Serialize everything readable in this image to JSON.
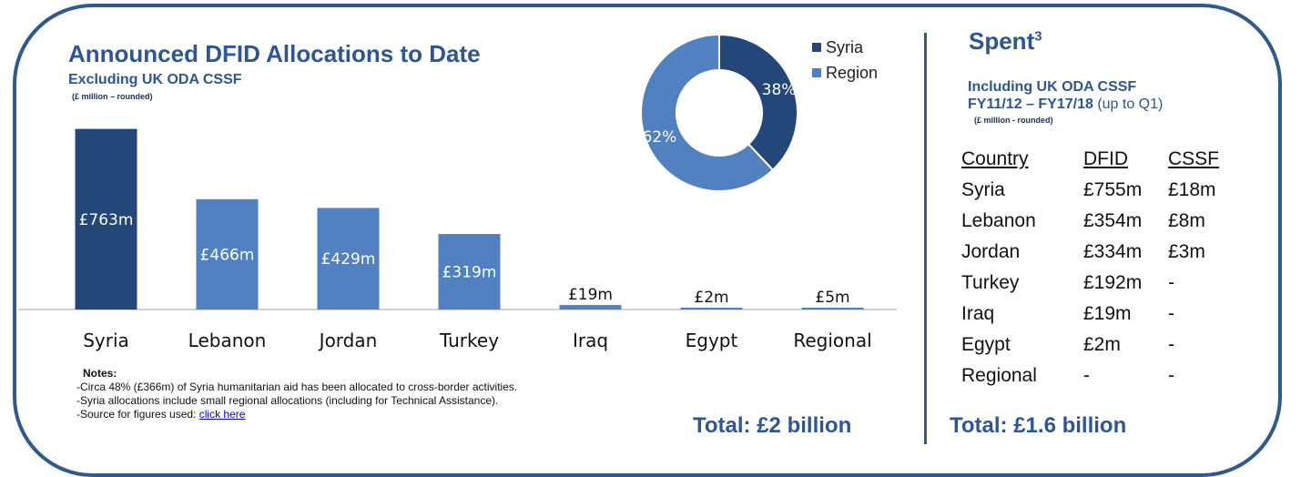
{
  "left": {
    "title": "Announced DFID Allocations to Date",
    "subtitle": "Excluding UK ODA CSSF",
    "unit": "(£ million – rounded)",
    "notes_title": "Notes:",
    "notes": [
      "-Circa 48% (£366m) of Syria humanitarian aid has been allocated to cross-border activities.",
      "-Syria allocations include small regional allocations (including for Technical Assistance).",
      "-Source for figures used: "
    ],
    "link_text": "click here",
    "total": "Total: £2 billion"
  },
  "chart_data": [
    {
      "type": "bar",
      "categories": [
        "Syria",
        "Lebanon",
        "Jordan",
        "Turkey",
        "Iraq",
        "Egypt",
        "Regional"
      ],
      "values": [
        763,
        466,
        429,
        319,
        19,
        2,
        5
      ],
      "labels": [
        "£763m",
        "£466m",
        "£429m",
        "£319m",
        "£19m",
        "£2m",
        "£5m"
      ],
      "colors": [
        "#24477a",
        "#5281c1",
        "#5281c1",
        "#5281c1",
        "#5281c1",
        "#5281c1",
        "#5281c1"
      ],
      "ylim": [
        0,
        800
      ]
    },
    {
      "type": "pie",
      "labels": [
        "Syria",
        "Region"
      ],
      "values": [
        38,
        62
      ],
      "value_labels": [
        "38%",
        "62%"
      ],
      "colors": [
        "#24477a",
        "#5281c1"
      ],
      "legend": "right"
    }
  ],
  "right": {
    "title": "Spent",
    "title_sup": "3",
    "sub1": "Including UK ODA CSSF",
    "sub2_bold": "FY11/12 – FY17/18",
    "sub2_rest": " (up to Q1)",
    "unit": "(£ million -  rounded)",
    "headers": [
      "Country",
      "DFID",
      "CSSF"
    ],
    "rows": [
      [
        "Syria",
        "£755m",
        "£18m"
      ],
      [
        "Lebanon",
        "£354m",
        "£8m"
      ],
      [
        "Jordan",
        "£334m",
        "£3m"
      ],
      [
        "Turkey",
        "£192m",
        "-"
      ],
      [
        "Iraq",
        "£19m",
        "-"
      ],
      [
        "Egypt",
        "£2m",
        "-"
      ],
      [
        "Regional",
        "-",
        "-"
      ]
    ],
    "total": "Total: £1.6 billion"
  }
}
